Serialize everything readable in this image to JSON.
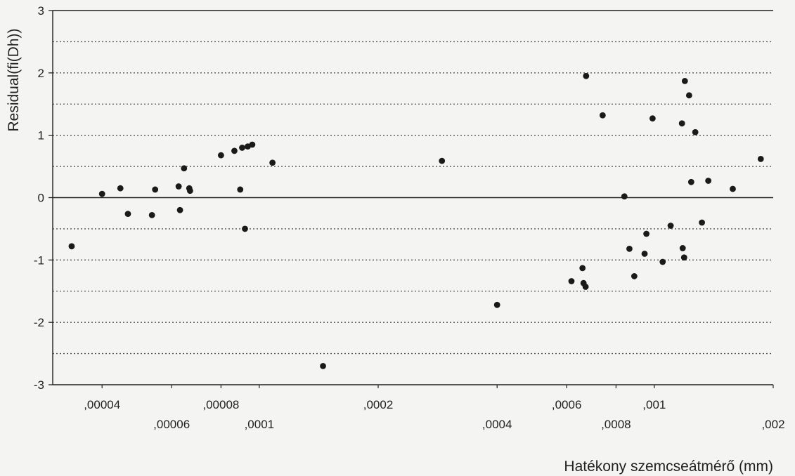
{
  "chart_data": {
    "type": "scatter",
    "title": "",
    "xlabel": "Hatékony szemcseátmérő (mm)",
    "ylabel": "Residual(fi(Dh))",
    "x_scale": "log",
    "xlim": [
      3e-05,
      0.002
    ],
    "ylim": [
      -3,
      3
    ],
    "y_ticks": [
      "3",
      "2",
      "1",
      "0",
      "-1",
      "-2",
      "-3"
    ],
    "y_tick_values": [
      3,
      2,
      1,
      0,
      -1,
      -2,
      -3
    ],
    "x_ticks": [
      {
        "label": ",00004",
        "value": 4e-05,
        "row": 0
      },
      {
        "label": ",00006",
        "value": 6e-05,
        "row": 1
      },
      {
        "label": ",00008",
        "value": 8e-05,
        "row": 0
      },
      {
        "label": ",0001",
        "value": 0.0001,
        "row": 1
      },
      {
        "label": ",0002",
        "value": 0.0002,
        "row": 0
      },
      {
        "label": ",0004",
        "value": 0.0004,
        "row": 1
      },
      {
        "label": ",0006",
        "value": 0.0006,
        "row": 0
      },
      {
        "label": ",0008",
        "value": 0.0008,
        "row": 1
      },
      {
        "label": ",001",
        "value": 0.001,
        "row": 0
      },
      {
        "label": ",002",
        "value": 0.002,
        "row": 1
      }
    ],
    "grid": "dotted horizontal every 0.5",
    "zero_line": true,
    "legend": "none",
    "points": [
      {
        "x": 3.35e-05,
        "y": -0.78
      },
      {
        "x": 4e-05,
        "y": 0.06
      },
      {
        "x": 4.45e-05,
        "y": 0.15
      },
      {
        "x": 4.65e-05,
        "y": -0.26
      },
      {
        "x": 5.35e-05,
        "y": -0.28
      },
      {
        "x": 5.45e-05,
        "y": 0.13
      },
      {
        "x": 6.25e-05,
        "y": 0.18
      },
      {
        "x": 6.3e-05,
        "y": -0.2
      },
      {
        "x": 6.45e-05,
        "y": 0.47
      },
      {
        "x": 6.65e-05,
        "y": 0.15
      },
      {
        "x": 6.68e-05,
        "y": 0.11
      },
      {
        "x": 8e-05,
        "y": 0.68
      },
      {
        "x": 8.65e-05,
        "y": 0.75
      },
      {
        "x": 8.95e-05,
        "y": 0.13
      },
      {
        "x": 9.05e-05,
        "y": 0.8
      },
      {
        "x": 9.2e-05,
        "y": -0.5
      },
      {
        "x": 9.35e-05,
        "y": 0.82
      },
      {
        "x": 9.6e-05,
        "y": 0.85
      },
      {
        "x": 0.000108,
        "y": 0.56
      },
      {
        "x": 0.000145,
        "y": -2.7
      },
      {
        "x": 0.00029,
        "y": 0.59
      },
      {
        "x": 0.0004,
        "y": -1.72
      },
      {
        "x": 0.000617,
        "y": -1.34
      },
      {
        "x": 0.000658,
        "y": -1.13
      },
      {
        "x": 0.000662,
        "y": -1.37
      },
      {
        "x": 0.00067,
        "y": -1.43
      },
      {
        "x": 0.000672,
        "y": 1.95
      },
      {
        "x": 0.00074,
        "y": 1.32
      },
      {
        "x": 0.00084,
        "y": 0.02
      },
      {
        "x": 0.000865,
        "y": -0.82
      },
      {
        "x": 0.00089,
        "y": -1.26
      },
      {
        "x": 0.000945,
        "y": -0.9
      },
      {
        "x": 0.000955,
        "y": -0.58
      },
      {
        "x": 0.00099,
        "y": 1.27
      },
      {
        "x": 0.00105,
        "y": -1.03
      },
      {
        "x": 0.0011,
        "y": -0.45
      },
      {
        "x": 0.001175,
        "y": 1.19
      },
      {
        "x": 0.00118,
        "y": -0.81
      },
      {
        "x": 0.00119,
        "y": -0.96
      },
      {
        "x": 0.001195,
        "y": 1.87
      },
      {
        "x": 0.001225,
        "y": 1.64
      },
      {
        "x": 0.00124,
        "y": 0.25
      },
      {
        "x": 0.00127,
        "y": 1.05
      },
      {
        "x": 0.00132,
        "y": -0.4
      },
      {
        "x": 0.00137,
        "y": 0.27
      },
      {
        "x": 0.00158,
        "y": 0.14
      },
      {
        "x": 0.00186,
        "y": 0.62
      }
    ]
  }
}
